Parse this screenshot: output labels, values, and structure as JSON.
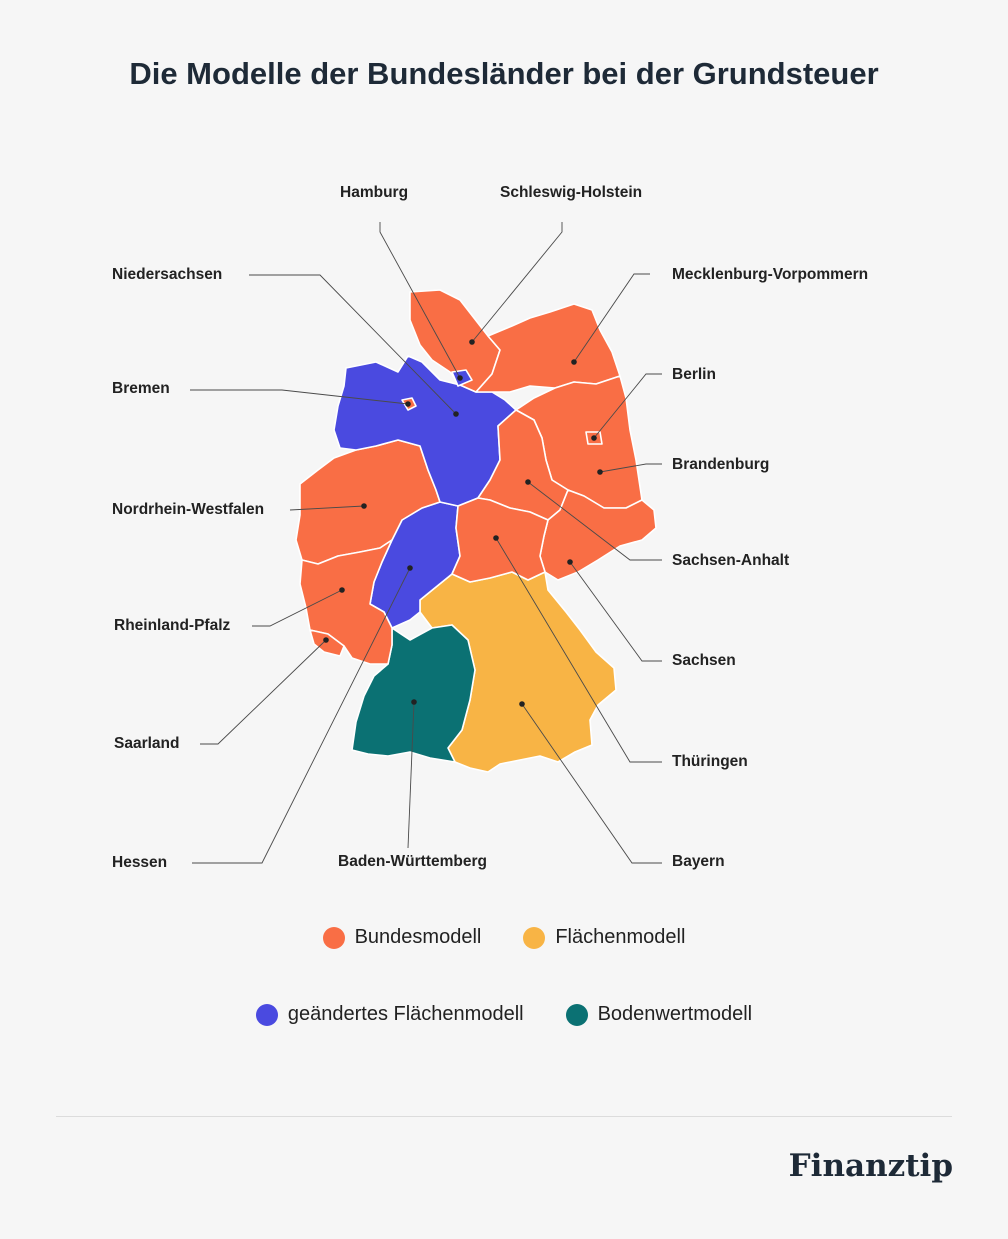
{
  "title": "Die Modelle der Bundesländer bei der Grundsteuer",
  "colors": {
    "bundesmodell": "#f96e45",
    "flaechenmodell": "#f8b445",
    "geaendertes_flaechenmodell": "#4a4ae0",
    "bodenwertmodell": "#0b7173"
  },
  "states": [
    {
      "key": "schleswig-holstein",
      "name": "Schleswig-Holstein",
      "model": "bundesmodell"
    },
    {
      "key": "hamburg",
      "name": "Hamburg",
      "model": "geaendertes_flaechenmodell"
    },
    {
      "key": "mecklenburg-vorpommern",
      "name": "Mecklenburg-Vorpommern",
      "model": "bundesmodell"
    },
    {
      "key": "niedersachsen",
      "name": "Niedersachsen",
      "model": "geaendertes_flaechenmodell"
    },
    {
      "key": "bremen",
      "name": "Bremen",
      "model": "bundesmodell"
    },
    {
      "key": "berlin",
      "name": "Berlin",
      "model": "bundesmodell"
    },
    {
      "key": "brandenburg",
      "name": "Brandenburg",
      "model": "bundesmodell"
    },
    {
      "key": "nordrhein-westfalen",
      "name": "Nordrhein-Westfalen",
      "model": "bundesmodell"
    },
    {
      "key": "sachsen-anhalt",
      "name": "Sachsen-Anhalt",
      "model": "bundesmodell"
    },
    {
      "key": "rheinland-pfalz",
      "name": "Rheinland-Pfalz",
      "model": "bundesmodell"
    },
    {
      "key": "sachsen",
      "name": "Sachsen",
      "model": "bundesmodell"
    },
    {
      "key": "hessen",
      "name": "Hessen",
      "model": "geaendertes_flaechenmodell"
    },
    {
      "key": "thueringen",
      "name": "Thüringen",
      "model": "bundesmodell"
    },
    {
      "key": "saarland",
      "name": "Saarland",
      "model": "bundesmodell"
    },
    {
      "key": "baden-wuerttemberg",
      "name": "Baden-Württemberg",
      "model": "bodenwertmodell"
    },
    {
      "key": "bayern",
      "name": "Bayern",
      "model": "flaechenmodell"
    }
  ],
  "legend": [
    {
      "label": "Bundesmodell",
      "color": "#f96e45"
    },
    {
      "label": "Flächenmodell",
      "color": "#f8b445"
    },
    {
      "label": "geändertes Flächenmodell",
      "color": "#4a4ae0"
    },
    {
      "label": "Bodenwertmodell",
      "color": "#0b7173"
    }
  ],
  "logo": "Finanztip"
}
